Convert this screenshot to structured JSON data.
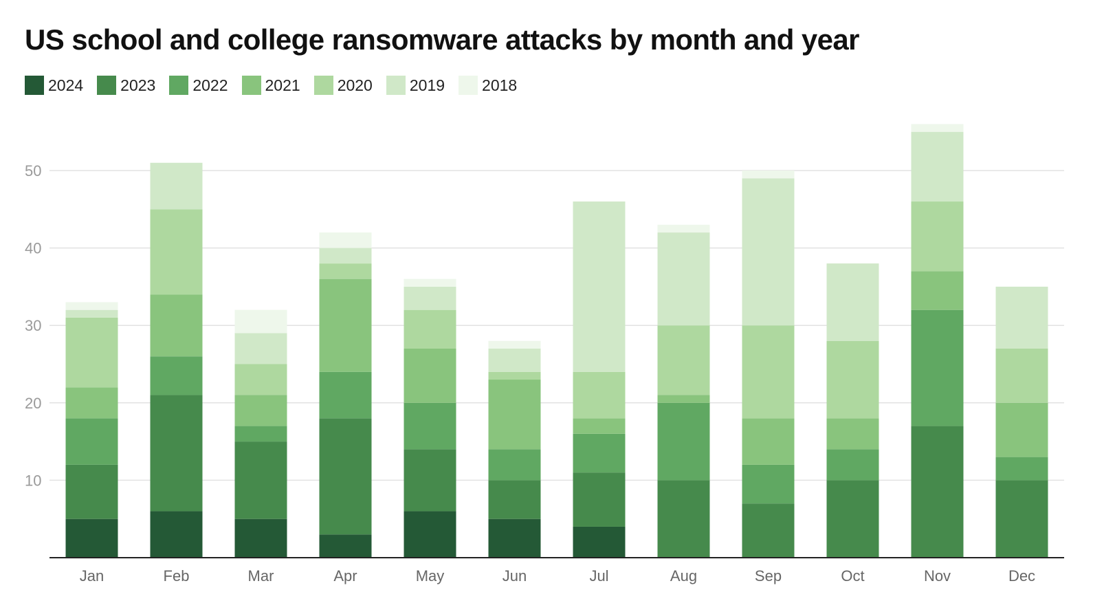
{
  "chart_data": {
    "type": "bar",
    "stacked": true,
    "title": "US school and college ransomware attacks by month and year",
    "xlabel": "",
    "ylabel": "",
    "ylim": [
      0,
      56
    ],
    "yticks": [
      10,
      20,
      30,
      40,
      50
    ],
    "grid": true,
    "legend_position": "top-left",
    "categories": [
      "Jan",
      "Feb",
      "Mar",
      "Apr",
      "May",
      "Jun",
      "Jul",
      "Aug",
      "Sep",
      "Oct",
      "Nov",
      "Dec"
    ],
    "series": [
      {
        "name": "2024",
        "color": "#245936",
        "values": [
          5,
          6,
          5,
          3,
          6,
          5,
          4,
          0,
          0,
          0,
          0,
          0
        ]
      },
      {
        "name": "2023",
        "color": "#468a4c",
        "values": [
          7,
          15,
          10,
          15,
          8,
          5,
          7,
          10,
          7,
          10,
          17,
          10
        ]
      },
      {
        "name": "2022",
        "color": "#60a862",
        "values": [
          6,
          5,
          2,
          6,
          6,
          4,
          5,
          10,
          5,
          4,
          15,
          3
        ]
      },
      {
        "name": "2021",
        "color": "#89c47d",
        "values": [
          4,
          8,
          4,
          12,
          7,
          9,
          2,
          1,
          6,
          4,
          5,
          7
        ]
      },
      {
        "name": "2020",
        "color": "#aed89f",
        "values": [
          9,
          11,
          4,
          2,
          5,
          1,
          6,
          9,
          12,
          10,
          9,
          7
        ]
      },
      {
        "name": "2019",
        "color": "#d0e8c8",
        "values": [
          1,
          6,
          4,
          2,
          3,
          3,
          22,
          12,
          19,
          10,
          9,
          8
        ]
      },
      {
        "name": "2018",
        "color": "#eef7eb",
        "values": [
          1,
          0,
          3,
          2,
          1,
          1,
          0,
          1,
          1,
          0,
          1,
          0
        ]
      }
    ]
  }
}
